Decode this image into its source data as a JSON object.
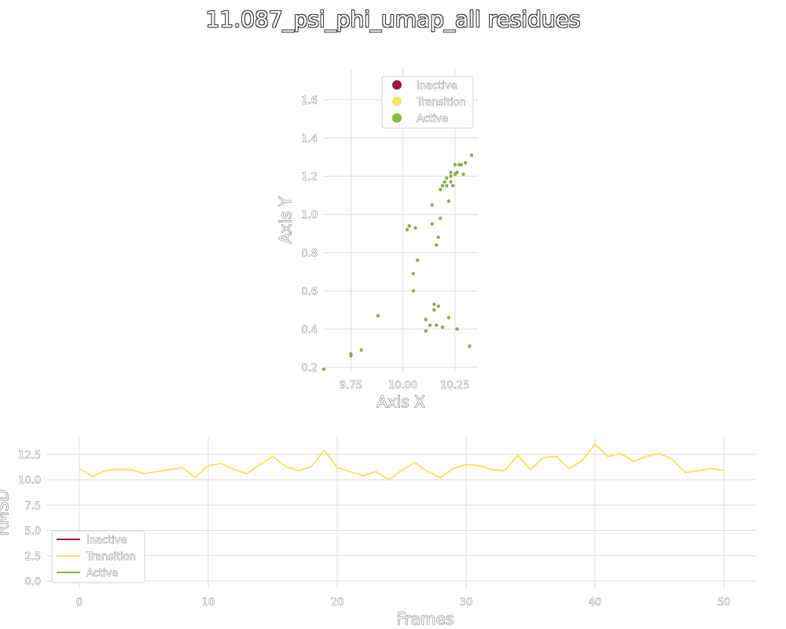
{
  "title": "11.087_psi_phi_umap_all residues",
  "colors": {
    "inactive": "#9b1445",
    "transition": "#f4e46c",
    "active": "#8ab93e",
    "point_edge": "#7d8a55"
  },
  "chart_data": [
    {
      "type": "scatter",
      "xlabel": "Axis X",
      "ylabel": "Axis Y",
      "xlim": [
        9.62,
        10.36
      ],
      "ylim": [
        0.18,
        1.76
      ],
      "xticks": [
        9.75,
        10.0,
        10.25
      ],
      "xtick_labels": [
        "9.75",
        "10.00",
        "10.25"
      ],
      "yticks": [
        0.2,
        0.4,
        0.6,
        0.8,
        1.0,
        1.2,
        1.4,
        1.6
      ],
      "ytick_labels": [
        "0.2",
        "0.4",
        "0.6",
        "0.8",
        "1.0",
        "1.2",
        "1.4",
        "1.6"
      ],
      "legend": [
        "Inactive",
        "Transition",
        "Active"
      ],
      "legend_position": "top-right",
      "grid": true,
      "points": [
        [
          9.62,
          0.19
        ],
        [
          9.75,
          0.26
        ],
        [
          9.75,
          0.27
        ],
        [
          9.8,
          0.29
        ],
        [
          9.88,
          0.47
        ],
        [
          10.02,
          0.92
        ],
        [
          10.03,
          0.94
        ],
        [
          10.05,
          0.6
        ],
        [
          10.05,
          0.69
        ],
        [
          10.06,
          0.93
        ],
        [
          10.07,
          0.76
        ],
        [
          10.11,
          0.39
        ],
        [
          10.11,
          0.45
        ],
        [
          10.13,
          0.42
        ],
        [
          10.14,
          0.95
        ],
        [
          10.14,
          1.05
        ],
        [
          10.15,
          0.5
        ],
        [
          10.15,
          0.53
        ],
        [
          10.16,
          0.42
        ],
        [
          10.16,
          0.84
        ],
        [
          10.17,
          0.52
        ],
        [
          10.17,
          0.88
        ],
        [
          10.18,
          0.98
        ],
        [
          10.18,
          1.13
        ],
        [
          10.19,
          1.15
        ],
        [
          10.19,
          0.41
        ],
        [
          10.2,
          1.17
        ],
        [
          10.21,
          1.19
        ],
        [
          10.21,
          1.15
        ],
        [
          10.22,
          0.46
        ],
        [
          10.22,
          1.07
        ],
        [
          10.23,
          1.2
        ],
        [
          10.23,
          1.22
        ],
        [
          10.23,
          1.17
        ],
        [
          10.24,
          1.15
        ],
        [
          10.25,
          1.26
        ],
        [
          10.25,
          1.21
        ],
        [
          10.26,
          1.22
        ],
        [
          10.26,
          0.4
        ],
        [
          10.27,
          1.26
        ],
        [
          10.28,
          1.26
        ],
        [
          10.29,
          1.21
        ],
        [
          10.3,
          1.27
        ],
        [
          10.32,
          0.31
        ],
        [
          10.33,
          1.31
        ]
      ]
    },
    {
      "type": "line",
      "xlabel": "Frames",
      "ylabel": "RMSD",
      "xlim": [
        -2.5,
        52.5
      ],
      "ylim": [
        -0.7,
        14.2
      ],
      "xticks": [
        0,
        10,
        20,
        30,
        40,
        50
      ],
      "xtick_labels": [
        "0",
        "10",
        "20",
        "30",
        "40",
        "50"
      ],
      "yticks": [
        0.0,
        2.5,
        5.0,
        7.5,
        10.0,
        12.5
      ],
      "ytick_labels": [
        "0.0",
        "2.5",
        "5.0",
        "7.5",
        "10.0",
        "12.5"
      ],
      "legend": [
        "Inactive",
        "Transition",
        "Active"
      ],
      "legend_position": "lower-left",
      "grid": true,
      "series": [
        {
          "name": "Inactive",
          "values": []
        },
        {
          "name": "Transition",
          "x": [
            0,
            1,
            2,
            3,
            4,
            5,
            6,
            7,
            8,
            9,
            10,
            11,
            12,
            13,
            14,
            15,
            16,
            17,
            18,
            19,
            20,
            21,
            22,
            23,
            24,
            25,
            26,
            27,
            28,
            29,
            30,
            31,
            32,
            33,
            34,
            35,
            36,
            37,
            38,
            39,
            40,
            41,
            42,
            43,
            44,
            45,
            46,
            47,
            48,
            49,
            50
          ],
          "values": [
            11.1,
            10.3,
            10.9,
            11.0,
            11.0,
            10.6,
            10.8,
            11.0,
            11.2,
            10.2,
            11.4,
            11.6,
            11.0,
            10.6,
            11.5,
            12.3,
            11.3,
            10.9,
            11.3,
            12.9,
            11.2,
            10.8,
            10.4,
            10.8,
            10.0,
            10.9,
            11.7,
            10.8,
            10.2,
            11.1,
            11.5,
            11.4,
            11.0,
            10.9,
            12.4,
            11.0,
            12.2,
            12.3,
            11.1,
            11.9,
            13.5,
            12.3,
            12.6,
            11.8,
            12.3,
            12.6,
            12.0,
            10.7,
            10.9,
            11.1,
            10.9
          ]
        },
        {
          "name": "Active",
          "values": []
        }
      ]
    }
  ]
}
